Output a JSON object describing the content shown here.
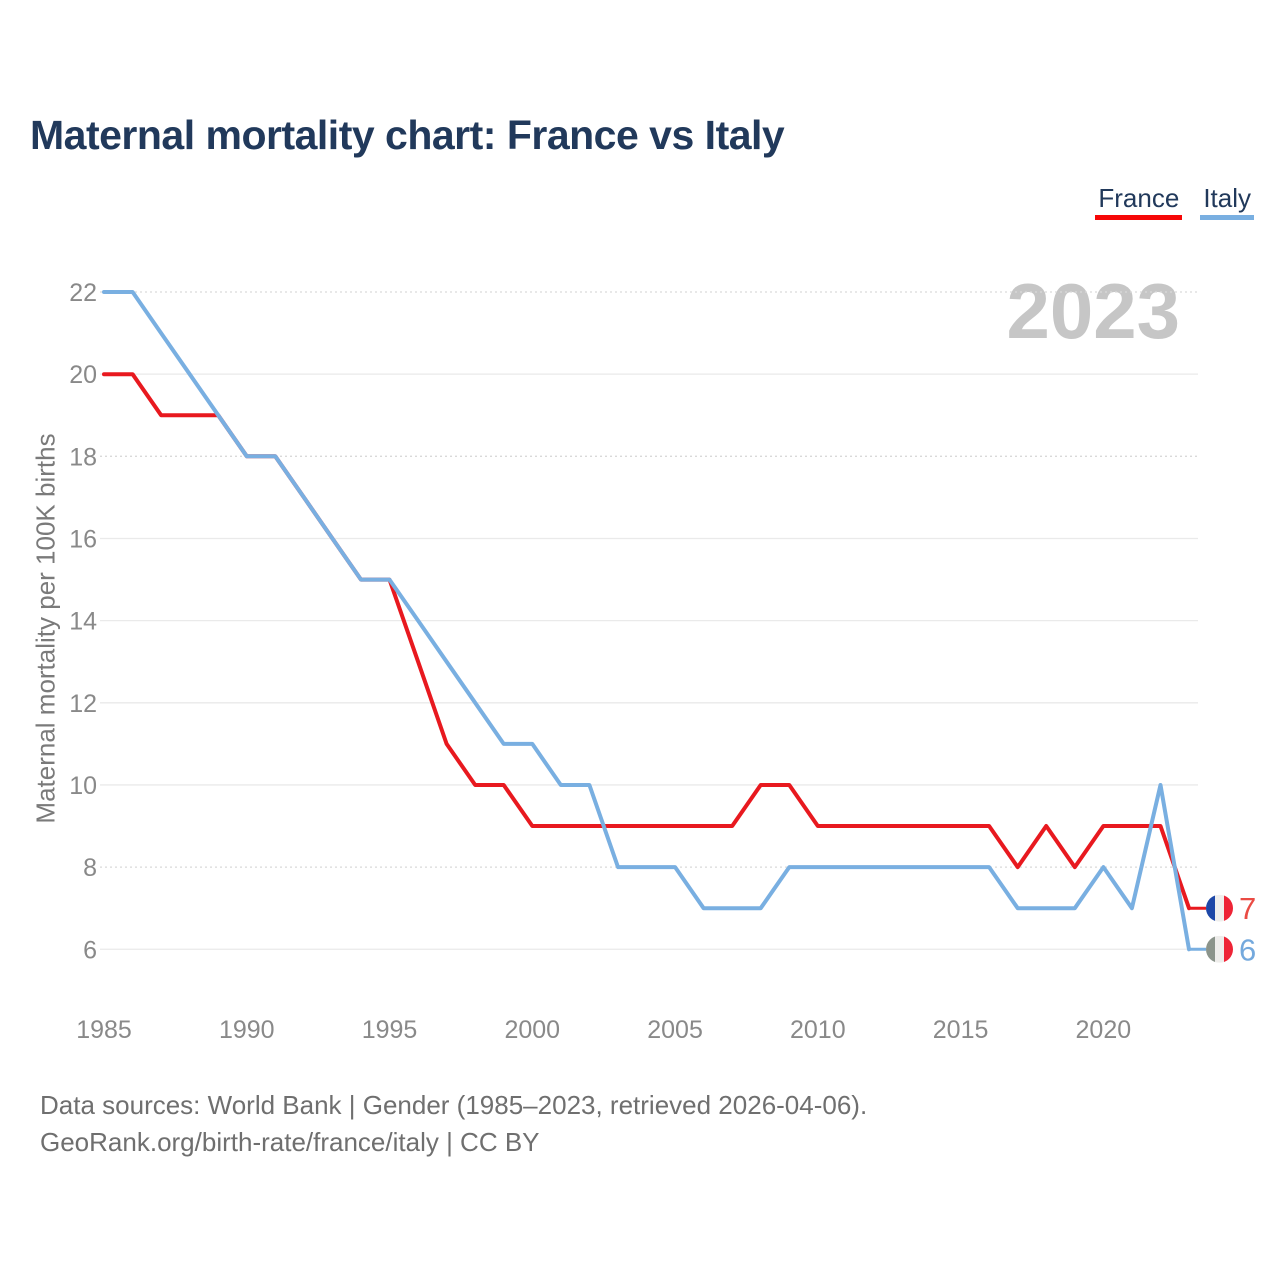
{
  "header": {
    "title": "Maternal mortality chart: France vs Italy"
  },
  "legend": [
    {
      "label": "France",
      "color": "#f60707"
    },
    {
      "label": "Italy",
      "color": "#79afe1"
    }
  ],
  "watermark": "2023",
  "footer": {
    "line1": "Data sources: World Bank | Gender (1985–2023, retrieved 2026-04-06).",
    "line2": "GeoRank.org/birth-rate/france/italy | CC BY"
  },
  "chart_data": {
    "type": "line",
    "ylabel": "Maternal mortality per 100K births",
    "xlabel": "",
    "grid": "horizontal",
    "ylim": [
      6,
      22
    ],
    "xlim": [
      1985,
      2023
    ],
    "x_ticks": [
      1985,
      1990,
      1995,
      2000,
      2005,
      2010,
      2015,
      2020
    ],
    "y_ticks": [
      6,
      8,
      10,
      12,
      14,
      16,
      18,
      20,
      22
    ],
    "x": [
      1985,
      1986,
      1987,
      1988,
      1989,
      1990,
      1991,
      1992,
      1993,
      1994,
      1995,
      1996,
      1997,
      1998,
      1999,
      2000,
      2001,
      2002,
      2003,
      2004,
      2005,
      2006,
      2007,
      2008,
      2009,
      2010,
      2011,
      2012,
      2013,
      2014,
      2015,
      2016,
      2017,
      2018,
      2019,
      2020,
      2021,
      2022,
      2023
    ],
    "series": [
      {
        "name": "France",
        "color": "#e8191f",
        "values": [
          20,
          20,
          19,
          19,
          19,
          18,
          18,
          17,
          16,
          15,
          15,
          13,
          11,
          10,
          10,
          9,
          9,
          9,
          9,
          9,
          9,
          9,
          9,
          10,
          10,
          9,
          9,
          9,
          9,
          9,
          9,
          9,
          8,
          9,
          8,
          9,
          9,
          9,
          7
        ]
      },
      {
        "name": "Italy",
        "color": "#79afe1",
        "values": [
          22,
          22,
          21,
          20,
          19,
          18,
          18,
          17,
          16,
          15,
          15,
          14,
          13,
          12,
          11,
          11,
          10,
          10,
          8,
          8,
          8,
          7,
          7,
          7,
          8,
          8,
          8,
          8,
          8,
          8,
          8,
          8,
          7,
          7,
          7,
          8,
          7,
          10,
          6
        ]
      }
    ],
    "end_labels": [
      {
        "series": "France",
        "value": 7,
        "text_color": "#ea4b44",
        "flag": "france-flag-icon",
        "flag_colors": [
          "#1e48a8",
          "#f0efed",
          "#ee2436"
        ]
      },
      {
        "series": "Italy",
        "value": 6,
        "text_color": "#74a9dd",
        "flag": "italy-flag-icon",
        "flag_colors": [
          "#8b948b",
          "#eeedeb",
          "#ee2436"
        ]
      }
    ]
  }
}
